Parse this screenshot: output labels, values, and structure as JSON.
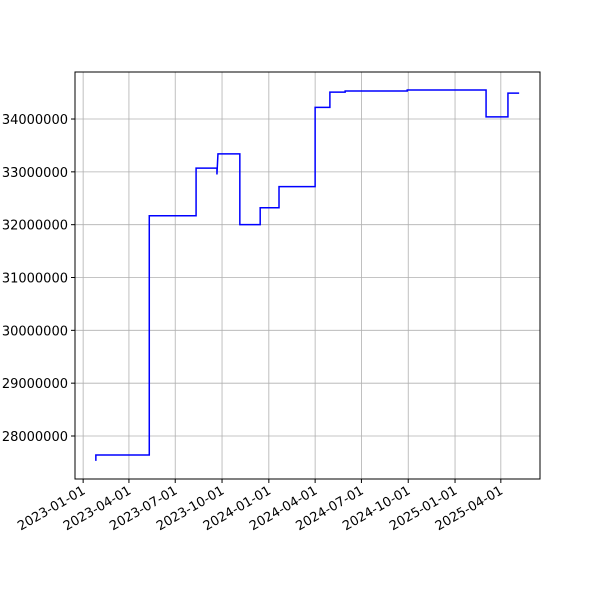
{
  "chart_data": {
    "type": "line",
    "color": "#0000ff",
    "grid": true,
    "x": [
      "2023-01-26",
      "2023-01-26",
      "2023-05-11",
      "2023-05-11",
      "2023-08-11",
      "2023-08-11",
      "2023-09-21",
      "2023-09-21",
      "2023-09-23",
      "2023-11-05",
      "2023-11-05",
      "2023-12-15",
      "2023-12-15",
      "2024-01-21",
      "2024-01-21",
      "2024-04-01",
      "2024-04-01",
      "2024-04-30",
      "2024-04-30",
      "2024-05-30",
      "2024-05-30",
      "2024-09-29",
      "2024-09-29",
      "2025-03-03",
      "2025-03-03",
      "2025-04-15",
      "2025-04-15",
      "2025-05-07"
    ],
    "values": [
      27530000,
      27640000,
      27640000,
      32170000,
      32170000,
      33070000,
      33070000,
      32950000,
      33340000,
      33340000,
      32000000,
      32000000,
      32320000,
      32320000,
      32720000,
      32720000,
      34220000,
      34220000,
      34510000,
      34510000,
      34530000,
      34530000,
      34550000,
      34550000,
      34040000,
      34040000,
      34490000,
      34490000
    ],
    "xlim": [
      "2022-12-16",
      "2025-06-17"
    ],
    "xticks": [
      "2023-01-01",
      "2023-04-01",
      "2023-07-01",
      "2023-10-01",
      "2024-01-01",
      "2024-04-01",
      "2024-07-01",
      "2024-10-01",
      "2025-01-01",
      "2025-04-01"
    ],
    "ylim": [
      27186000,
      34890000
    ],
    "yticks": [
      28000000,
      29000000,
      30000000,
      31000000,
      32000000,
      33000000,
      34000000
    ]
  }
}
